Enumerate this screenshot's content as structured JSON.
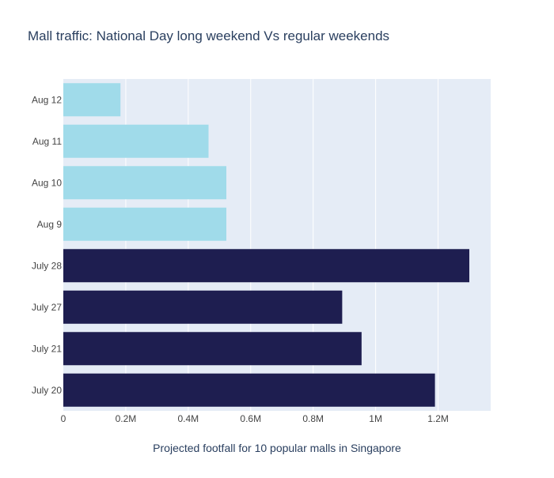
{
  "chart_data": {
    "type": "bar",
    "orientation": "horizontal",
    "title": "Mall traffic: National Day long weekend Vs regular weekends",
    "xlabel": "Projected footfall for 10 popular malls in Singapore",
    "ylabel": "",
    "categories": [
      "July 20",
      "July 21",
      "July 27",
      "July 28",
      "Aug 9",
      "Aug 10",
      "Aug 11",
      "Aug 12"
    ],
    "values": [
      1190000,
      955000,
      893000,
      1300000,
      522000,
      522000,
      465000,
      183000
    ],
    "bar_colors": [
      "#1e1e50",
      "#1e1e50",
      "#1e1e50",
      "#1e1e50",
      "#a0dbea",
      "#a0dbea",
      "#a0dbea",
      "#a0dbea"
    ],
    "xlim": [
      0,
      1368421
    ],
    "x_ticks": [
      0,
      200000,
      400000,
      600000,
      800000,
      1000000,
      1200000
    ],
    "x_tick_labels": [
      "0",
      "0.2M",
      "0.4M",
      "0.6M",
      "0.8M",
      "1M",
      "1.2M"
    ],
    "grid": true,
    "legend": false,
    "colors": {
      "plot_bg": "#e5ecf6",
      "grid": "#ffffff",
      "text": "#444444",
      "title": "#2a3f5f"
    }
  }
}
